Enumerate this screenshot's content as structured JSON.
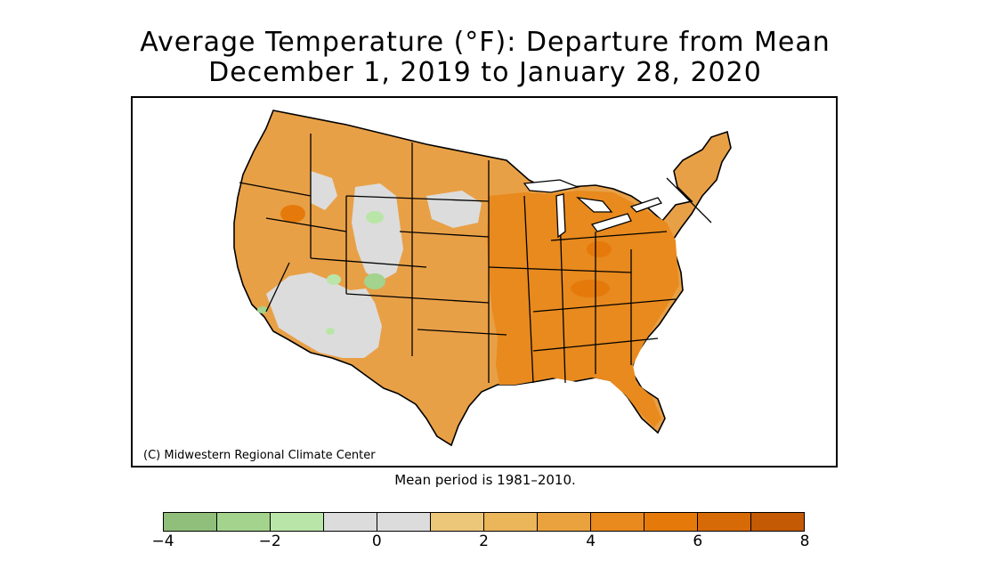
{
  "title": {
    "line1": "Average Temperature (°F): Departure from Mean",
    "line2": "December 1, 2019 to January 28, 2020"
  },
  "credit": "(C) Midwestern Regional Climate Center",
  "mean_period_note": "Mean period is 1981–2010.",
  "legend": {
    "colors": [
      "#8fbf7a",
      "#a3d38d",
      "#b9e6a8",
      "#dcdcdc",
      "#dcdcdc",
      "#ecc77a",
      "#ebb55a",
      "#e9a23d",
      "#e88a1e",
      "#e57a0b",
      "#d66a06",
      "#c45a04"
    ],
    "ticks": [
      "−4",
      "−2",
      "0",
      "2",
      "4",
      "6",
      "8"
    ],
    "tick_values": [
      -4,
      -2,
      0,
      2,
      4,
      6,
      8
    ],
    "min": -4,
    "max": 8
  },
  "map": {
    "land_color": "#e8a047",
    "east_color": "#e88a1e",
    "near_normal_color": "#dcdcdc",
    "cool_color": "#a3d38d",
    "border_color": "#000000"
  }
}
